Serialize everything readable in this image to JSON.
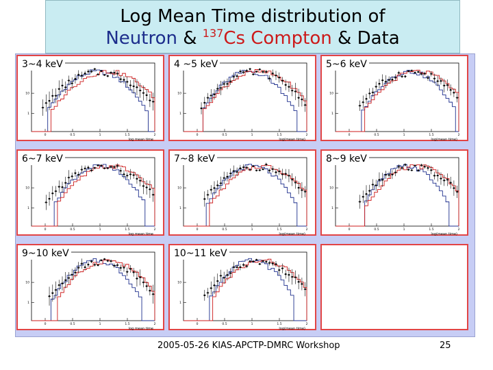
{
  "title": {
    "line1": "Log Mean Time distribution  of",
    "neutron": "Neutron",
    "amp1": " & ",
    "mass": "137",
    "cs": "Cs Compton",
    "amp2": " & ",
    "data": "Data"
  },
  "colors": {
    "neutron": "#1c2d8c",
    "compton": "#cc1a1a",
    "data": "#000000",
    "panel_border": "#e24444",
    "frame": "#c7cdf5",
    "title_bg": "#c9ecf2"
  },
  "footer": {
    "text": "2005-05-26 KIAS-APCTP-DMRC Workshop",
    "page": "25"
  },
  "chart_data": [
    {
      "type": "line",
      "label": "3~4 keV",
      "xlabel": "log mean time",
      "log_y": true,
      "xticks": [
        "0",
        "0.5",
        "1",
        "1.5",
        "2"
      ],
      "yticks": [
        "1",
        "10"
      ],
      "series": [
        {
          "key": "neutron",
          "mu": 0.95,
          "sigma": 0.3
        },
        {
          "key": "compton",
          "mu": 1.15,
          "sigma": 0.34
        },
        {
          "key": "data",
          "mu": 1.0,
          "sigma": 0.36
        }
      ]
    },
    {
      "type": "line",
      "label": "4 ~5 keV",
      "xlabel": "log(mean time)",
      "log_y": true,
      "xticks": [
        "0",
        "0.5",
        "1",
        "1.5",
        "2"
      ],
      "yticks": [
        "1",
        "10"
      ],
      "series": [
        {
          "key": "neutron",
          "mu": 0.95,
          "sigma": 0.28
        },
        {
          "key": "compton",
          "mu": 1.12,
          "sigma": 0.33
        },
        {
          "key": "data",
          "mu": 1.05,
          "sigma": 0.34
        }
      ]
    },
    {
      "type": "line",
      "label": "5~6 keV",
      "xlabel": "log(mean time)",
      "log_y": true,
      "xticks": [
        "0",
        "0.5",
        "1",
        "1.5",
        "2"
      ],
      "yticks": [
        "1",
        "10"
      ],
      "series": [
        {
          "key": "neutron",
          "mu": 1.1,
          "sigma": 0.28
        },
        {
          "key": "compton",
          "mu": 1.25,
          "sigma": 0.32
        },
        {
          "key": "data",
          "mu": 1.15,
          "sigma": 0.34
        }
      ]
    },
    {
      "type": "line",
      "label": "6~7 keV",
      "xlabel": "log mean time",
      "log_y": true,
      "xticks": [
        "0",
        "0.5",
        "1",
        "1.5",
        "2"
      ],
      "yticks": [
        "1",
        "10"
      ],
      "series": [
        {
          "key": "neutron",
          "mu": 1.0,
          "sigma": 0.28
        },
        {
          "key": "compton",
          "mu": 1.2,
          "sigma": 0.33
        },
        {
          "key": "data",
          "mu": 1.05,
          "sigma": 0.36
        }
      ]
    },
    {
      "type": "line",
      "label": "7~8 keV",
      "xlabel": "log(mean time)",
      "log_y": true,
      "xticks": [
        "0",
        "0.5",
        "1",
        "1.5",
        "2"
      ],
      "yticks": [
        "1",
        "10"
      ],
      "series": [
        {
          "key": "neutron",
          "mu": 1.0,
          "sigma": 0.27
        },
        {
          "key": "compton",
          "mu": 1.2,
          "sigma": 0.32
        },
        {
          "key": "data",
          "mu": 1.1,
          "sigma": 0.35
        }
      ]
    },
    {
      "type": "line",
      "label": "8~9 keV",
      "xlabel": "log(mean time)",
      "log_y": true,
      "xticks": [
        "0",
        "0.5",
        "1",
        "1.5",
        "2"
      ],
      "yticks": [
        "1",
        "10"
      ],
      "series": [
        {
          "key": "neutron",
          "mu": 1.05,
          "sigma": 0.26
        },
        {
          "key": "compton",
          "mu": 1.25,
          "sigma": 0.31
        },
        {
          "key": "data",
          "mu": 1.15,
          "sigma": 0.34
        }
      ]
    },
    {
      "type": "line",
      "label": "9~10 keV",
      "xlabel": "log mean time",
      "log_y": true,
      "xticks": [
        "0",
        "0.5",
        "1",
        "1.5",
        "2"
      ],
      "yticks": [
        "1",
        "10"
      ],
      "series": [
        {
          "key": "neutron",
          "mu": 0.95,
          "sigma": 0.27
        },
        {
          "key": "compton",
          "mu": 1.15,
          "sigma": 0.31
        },
        {
          "key": "data",
          "mu": 1.05,
          "sigma": 0.34
        }
      ]
    },
    {
      "type": "line",
      "label": "10~11 keV",
      "xlabel": "log(mean time)",
      "log_y": true,
      "xticks": [
        "0",
        "0.5",
        "1",
        "1.5",
        "2"
      ],
      "yticks": [
        "1",
        "10"
      ],
      "series": [
        {
          "key": "neutron",
          "mu": 1.0,
          "sigma": 0.26
        },
        {
          "key": "compton",
          "mu": 1.2,
          "sigma": 0.31
        },
        {
          "key": "data",
          "mu": 1.1,
          "sigma": 0.34
        }
      ]
    }
  ]
}
